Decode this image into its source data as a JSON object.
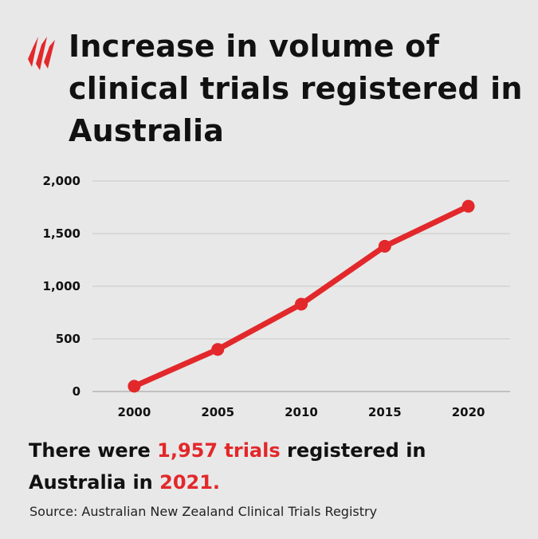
{
  "title": "Increase in volume of clinical trials registered in Australia",
  "brand": {
    "logo_icon": "sbs-logo-icon",
    "color": "#e2282b"
  },
  "chart_data": {
    "type": "line",
    "title": "Increase in volume of clinical trials registered in Australia",
    "xlabel": "",
    "ylabel": "",
    "x": [
      2000,
      2005,
      2010,
      2015,
      2020
    ],
    "series": [
      {
        "values": [
          50,
          400,
          830,
          1380,
          1760
        ]
      }
    ],
    "xticks": [
      "2000",
      "2005",
      "2010",
      "2015",
      "2020"
    ],
    "yticks": [
      "0",
      "500",
      "1,000",
      "1,500",
      "2,000"
    ],
    "ytick_values": [
      0,
      500,
      1000,
      1500,
      2000
    ],
    "ylim": [
      0,
      2000
    ],
    "xlim": [
      1997.5,
      2022.5
    ],
    "grid": true,
    "line_color": "#e2282b"
  },
  "summary": {
    "part1": "There were ",
    "highlight1": "1,957 trials",
    "part2": " registered in Australia in ",
    "highlight2": "2021."
  },
  "source": "Source: Australian New Zealand Clinical Trials Registry"
}
